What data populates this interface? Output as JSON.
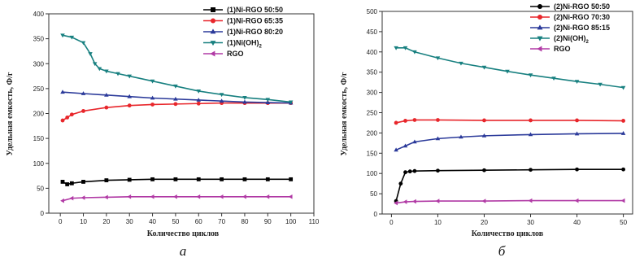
{
  "chart_data": [
    {
      "type": "line",
      "panel_label": "a",
      "xlabel": "Количество циклов",
      "ylabel": "Удельная емкость, Ф/г",
      "xlim": [
        -5,
        110
      ],
      "ylim": [
        0,
        400
      ],
      "xticks": [
        0,
        10,
        20,
        30,
        40,
        50,
        60,
        70,
        80,
        90,
        100,
        110
      ],
      "yticks": [
        0,
        50,
        100,
        150,
        200,
        250,
        300,
        350,
        400
      ],
      "legend_position": "top-right",
      "series": [
        {
          "name": "(1)Ni-RGO 50:50",
          "color": "#000000",
          "marker": "square",
          "x": [
            1,
            3,
            5,
            10,
            20,
            30,
            40,
            50,
            60,
            70,
            80,
            90,
            100
          ],
          "y": [
            63,
            58,
            60,
            63,
            66,
            67,
            68,
            68,
            68,
            68,
            68,
            68,
            68
          ]
        },
        {
          "name": "(1)Ni-RGO 65:35",
          "color": "#e8262b",
          "marker": "circle",
          "x": [
            1,
            3,
            5,
            10,
            20,
            30,
            40,
            50,
            60,
            70,
            80,
            90,
            100
          ],
          "y": [
            186,
            192,
            198,
            205,
            212,
            216,
            218,
            219,
            220,
            221,
            221,
            221,
            221
          ]
        },
        {
          "name": "(1)Ni-RGO 80:20",
          "color": "#2b3a9a",
          "marker": "triangle-up",
          "x": [
            1,
            10,
            20,
            30,
            40,
            50,
            60,
            70,
            80,
            90,
            100
          ],
          "y": [
            243,
            240,
            237,
            234,
            231,
            229,
            227,
            225,
            223,
            222,
            221
          ]
        },
        {
          "name": "(1)Ni(OH)",
          "name_sub": "2",
          "color": "#188080",
          "marker": "triangle-down",
          "x": [
            1,
            5,
            10,
            13,
            15,
            17,
            20,
            25,
            30,
            40,
            50,
            60,
            70,
            80,
            90,
            100
          ],
          "y": [
            357,
            353,
            342,
            320,
            300,
            290,
            285,
            280,
            275,
            265,
            255,
            245,
            238,
            232,
            228,
            223
          ]
        },
        {
          "name": "RGO",
          "color": "#b13aa5",
          "marker": "triangle-left",
          "x": [
            1,
            5,
            10,
            20,
            30,
            40,
            50,
            60,
            70,
            80,
            90,
            100
          ],
          "y": [
            25,
            30,
            31,
            32,
            33,
            33,
            33,
            33,
            33,
            33,
            33,
            33
          ]
        }
      ]
    },
    {
      "type": "line",
      "panel_label": "б",
      "xlabel": "Количество циклов",
      "ylabel": "Удельная емкость, Ф/г",
      "xlim": [
        -2,
        52
      ],
      "ylim": [
        0,
        500
      ],
      "xticks": [
        0,
        10,
        20,
        30,
        40,
        50
      ],
      "yticks": [
        0,
        50,
        100,
        150,
        200,
        250,
        300,
        350,
        400,
        450,
        500
      ],
      "legend_position": "top-right",
      "series": [
        {
          "name": "(2)Ni-RGO 50:50",
          "color": "#000000",
          "marker": "circle",
          "x": [
            1,
            2,
            3,
            4,
            5,
            10,
            20,
            30,
            40,
            50
          ],
          "y": [
            32,
            75,
            103,
            105,
            106,
            107,
            108,
            109,
            110,
            110
          ]
        },
        {
          "name": "(2)Ni-RGO 70:30",
          "color": "#e8262b",
          "marker": "circle",
          "x": [
            1,
            3,
            5,
            10,
            20,
            30,
            40,
            50
          ],
          "y": [
            225,
            230,
            232,
            232,
            231,
            231,
            231,
            230
          ]
        },
        {
          "name": "(2)Ni-RGO 85:15",
          "color": "#2b3a9a",
          "marker": "triangle-up",
          "x": [
            1,
            3,
            5,
            10,
            15,
            20,
            30,
            40,
            50
          ],
          "y": [
            158,
            168,
            178,
            186,
            190,
            193,
            196,
            198,
            199
          ]
        },
        {
          "name": "(2)Ni(OH)",
          "name_sub": "2",
          "color": "#188080",
          "marker": "triangle-down",
          "x": [
            1,
            3,
            5,
            10,
            15,
            20,
            25,
            30,
            35,
            40,
            45,
            50
          ],
          "y": [
            410,
            410,
            400,
            385,
            372,
            362,
            352,
            343,
            335,
            327,
            320,
            312
          ]
        },
        {
          "name": "RGO",
          "color": "#b13aa5",
          "marker": "triangle-left",
          "x": [
            1,
            3,
            5,
            10,
            20,
            30,
            40,
            50
          ],
          "y": [
            27,
            30,
            31,
            32,
            32,
            33,
            33,
            33
          ]
        }
      ]
    }
  ]
}
